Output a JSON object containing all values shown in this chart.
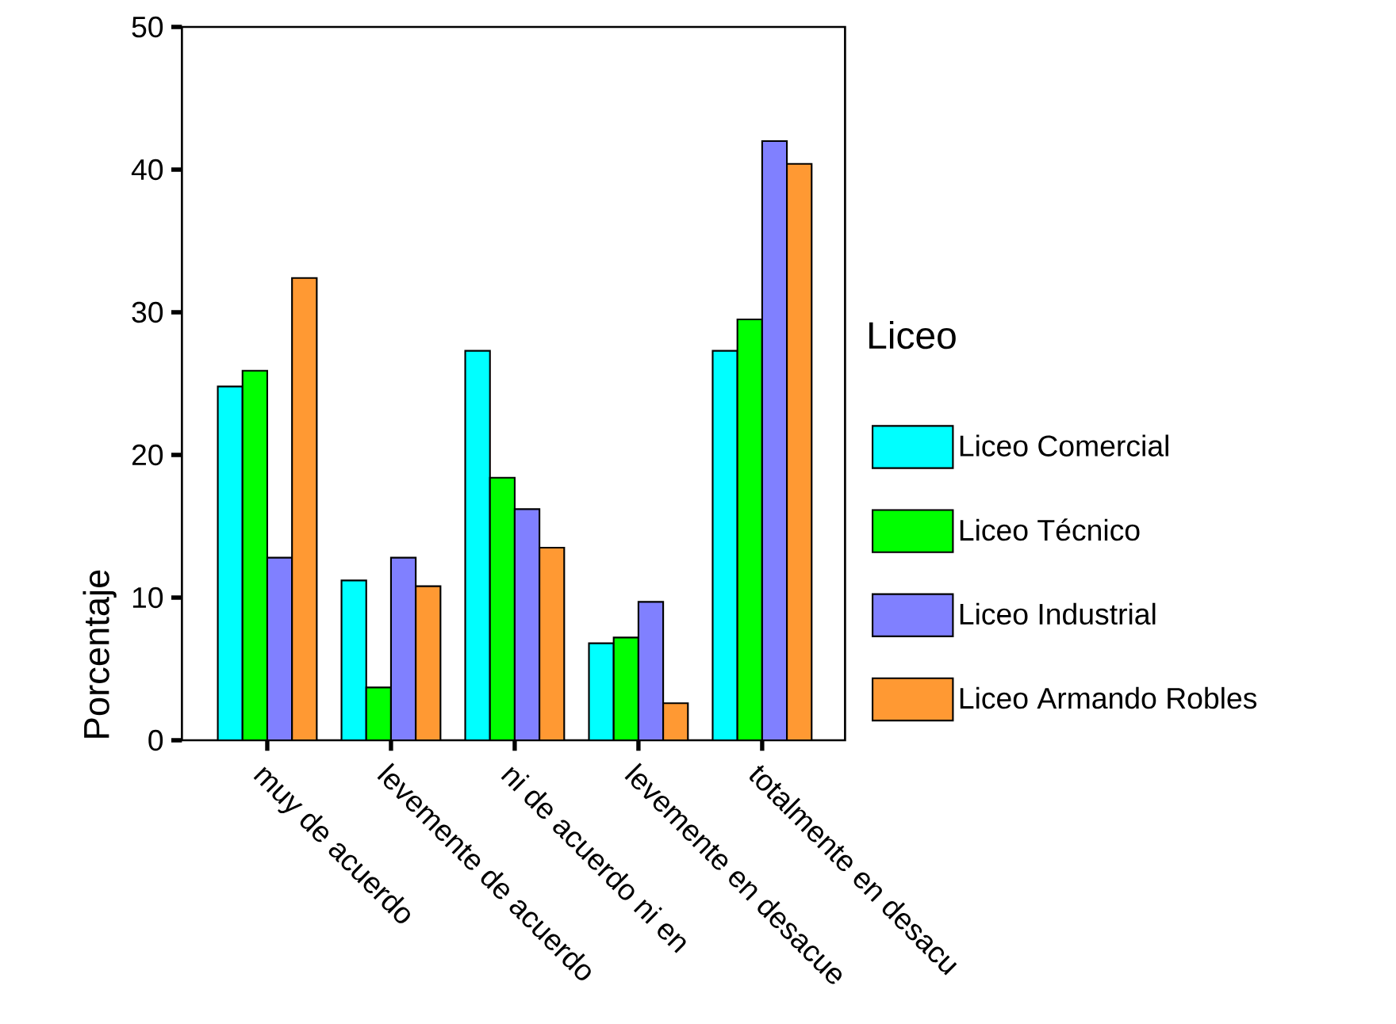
{
  "chart_data": {
    "type": "bar",
    "ylabel": "Porcentaje",
    "legend_title": "Liceo",
    "legend": "right",
    "grid": false,
    "categories": [
      "muy de acuerdo",
      "levemente de acuerdo",
      "ni de acuerdo ni en",
      "levemente en desacue",
      "totalmente en desacu"
    ],
    "ylim": [
      0,
      50
    ],
    "yticks": [
      0,
      10,
      20,
      30,
      40,
      50
    ],
    "series": [
      {
        "name": "Liceo Comercial",
        "color": "#00ffff",
        "values": [
          24.8,
          11.2,
          27.3,
          6.8,
          27.3
        ]
      },
      {
        "name": "Liceo Técnico",
        "color": "#00ff00",
        "values": [
          25.9,
          3.7,
          18.4,
          7.2,
          29.5
        ]
      },
      {
        "name": "Liceo Industrial",
        "color": "#8080ff",
        "values": [
          12.8,
          12.8,
          16.2,
          9.7,
          42.0
        ]
      },
      {
        "name": "Liceo Armando Robles",
        "color": "#ff9933",
        "values": [
          32.4,
          10.8,
          13.5,
          2.6,
          40.4
        ]
      }
    ]
  }
}
